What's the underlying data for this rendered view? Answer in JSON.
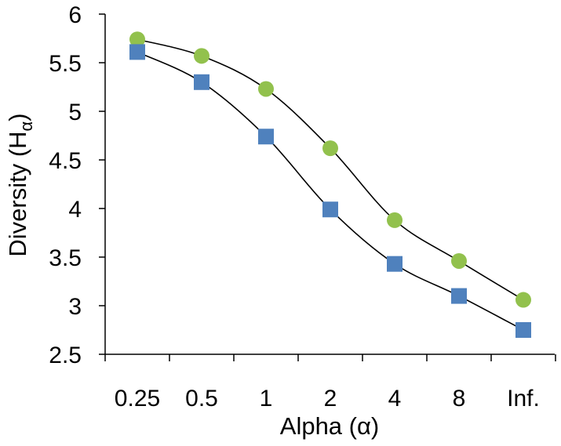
{
  "chart_data": {
    "type": "line",
    "categories": [
      "0.25",
      "0.5",
      "1",
      "2",
      "4",
      "8",
      "Inf."
    ],
    "series": [
      {
        "marker": "circle",
        "color": "#92c14d",
        "values": [
          5.74,
          5.57,
          5.23,
          4.62,
          3.88,
          3.46,
          3.06
        ]
      },
      {
        "marker": "square",
        "color": "#4f81bd",
        "values": [
          5.61,
          5.3,
          4.74,
          3.99,
          3.43,
          3.1,
          2.75
        ]
      }
    ],
    "ylim": [
      2.5,
      6
    ],
    "yticks": [
      "2.5",
      "3",
      "3.5",
      "4",
      "4.5",
      "5",
      "5.5",
      "6"
    ],
    "xlabel": "Alpha (α)",
    "ylabel": {
      "main": "Diversity (H",
      "subscript": "α",
      "close": ")"
    },
    "grid": false,
    "legend": "none"
  }
}
